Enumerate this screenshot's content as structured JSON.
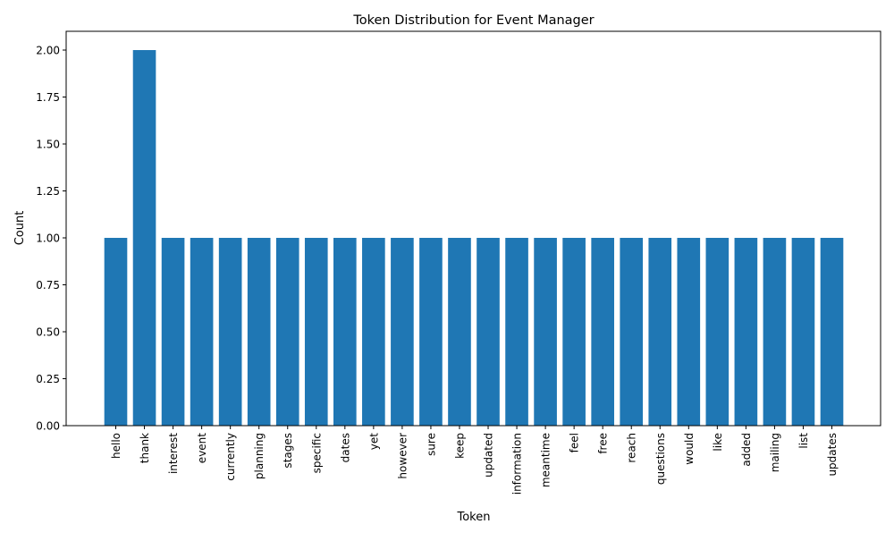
{
  "chart_data": {
    "type": "bar",
    "title": "Token Distribution for Event Manager",
    "xlabel": "Token",
    "ylabel": "Count",
    "ylim": [
      0,
      2.1
    ],
    "yticks": [
      "0.00",
      "0.25",
      "0.50",
      "0.75",
      "1.00",
      "1.25",
      "1.50",
      "1.75",
      "2.00"
    ],
    "grid": false,
    "legend": "none",
    "bar_color": "#1f77b4",
    "categories": [
      "hello",
      "thank",
      "interest",
      "event",
      "currently",
      "planning",
      "stages",
      "specific",
      "dates",
      "yet",
      "however",
      "sure",
      "keep",
      "updated",
      "information",
      "meantime",
      "feel",
      "free",
      "reach",
      "questions",
      "would",
      "like",
      "added",
      "mailing",
      "list",
      "updates"
    ],
    "values": [
      1,
      2,
      1,
      1,
      1,
      1,
      1,
      1,
      1,
      1,
      1,
      1,
      1,
      1,
      1,
      1,
      1,
      1,
      1,
      1,
      1,
      1,
      1,
      1,
      1,
      1
    ]
  }
}
